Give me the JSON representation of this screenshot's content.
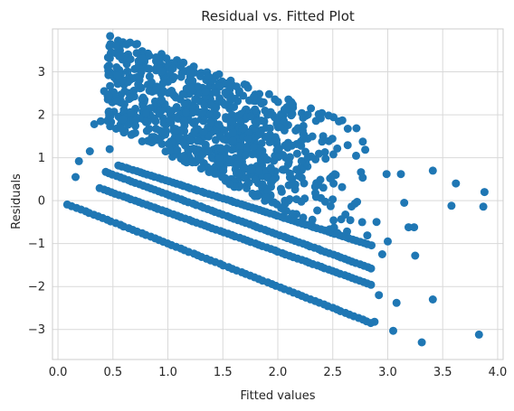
{
  "chart_data": {
    "type": "scatter",
    "title": "Residual vs. Fitted Plot",
    "xlabel": "Fitted values",
    "ylabel": "Residuals",
    "xlim": [
      -0.05,
      4.05
    ],
    "ylim": [
      -3.7,
      4.0
    ],
    "xticks": [
      0.0,
      0.5,
      1.0,
      1.5,
      2.0,
      2.5,
      3.0,
      3.5,
      4.0
    ],
    "xtick_labels": [
      "0.0",
      "0.5",
      "1.0",
      "1.5",
      "2.0",
      "2.5",
      "3.0",
      "3.5",
      "4.0"
    ],
    "yticks": [
      -3,
      -2,
      -1,
      0,
      1,
      2,
      3
    ],
    "ytick_labels": [
      "−3",
      "−2",
      "−1",
      "0",
      "1",
      "2",
      "3"
    ],
    "grid": true,
    "marker_color": "#1f77b4",
    "bands": [
      {
        "x": [
          0.09,
          2.85
        ],
        "y": [
          -0.09,
          -2.85
        ]
      },
      {
        "x": [
          0.38,
          2.85
        ],
        "y": [
          0.29,
          -1.96
        ]
      },
      {
        "x": [
          0.43,
          2.85
        ],
        "y": [
          0.67,
          -1.58
        ]
      },
      {
        "x": [
          0.55,
          2.85
        ],
        "y": [
          0.82,
          -1.04
        ]
      }
    ],
    "cloud": {
      "x_range": [
        0.45,
        2.95
      ],
      "top_line": [
        [
          0.7,
          3.65
        ],
        [
          2.6,
          1.9
        ]
      ],
      "bottom_line": [
        [
          0.5,
          1.7
        ],
        [
          2.5,
          -0.8
        ]
      ]
    },
    "outliers": [
      {
        "x": 0.16,
        "y": 0.55
      },
      {
        "x": 0.19,
        "y": 0.92
      },
      {
        "x": 0.29,
        "y": 1.15
      },
      {
        "x": 0.33,
        "y": 1.78
      },
      {
        "x": 0.39,
        "y": 1.85
      },
      {
        "x": 0.42,
        "y": 2.55
      },
      {
        "x": 0.47,
        "y": 1.2
      },
      {
        "x": 0.57,
        "y": 3.38
      },
      {
        "x": 0.72,
        "y": 3.65
      },
      {
        "x": 2.88,
        "y": -2.82
      },
      {
        "x": 2.92,
        "y": -2.2
      },
      {
        "x": 2.95,
        "y": -1.25
      },
      {
        "x": 3.0,
        "y": -0.95
      },
      {
        "x": 3.05,
        "y": -3.03
      },
      {
        "x": 3.08,
        "y": -2.38
      },
      {
        "x": 2.99,
        "y": 0.62
      },
      {
        "x": 3.12,
        "y": 0.62
      },
      {
        "x": 3.15,
        "y": -0.05
      },
      {
        "x": 3.19,
        "y": -0.62
      },
      {
        "x": 3.25,
        "y": -1.28
      },
      {
        "x": 3.24,
        "y": -0.62
      },
      {
        "x": 3.31,
        "y": -3.3
      },
      {
        "x": 3.41,
        "y": 0.7
      },
      {
        "x": 3.41,
        "y": -2.3
      },
      {
        "x": 3.58,
        "y": -0.12
      },
      {
        "x": 3.62,
        "y": 0.4
      },
      {
        "x": 3.83,
        "y": -3.12
      },
      {
        "x": 3.87,
        "y": -0.14
      },
      {
        "x": 3.88,
        "y": 0.2
      }
    ]
  }
}
